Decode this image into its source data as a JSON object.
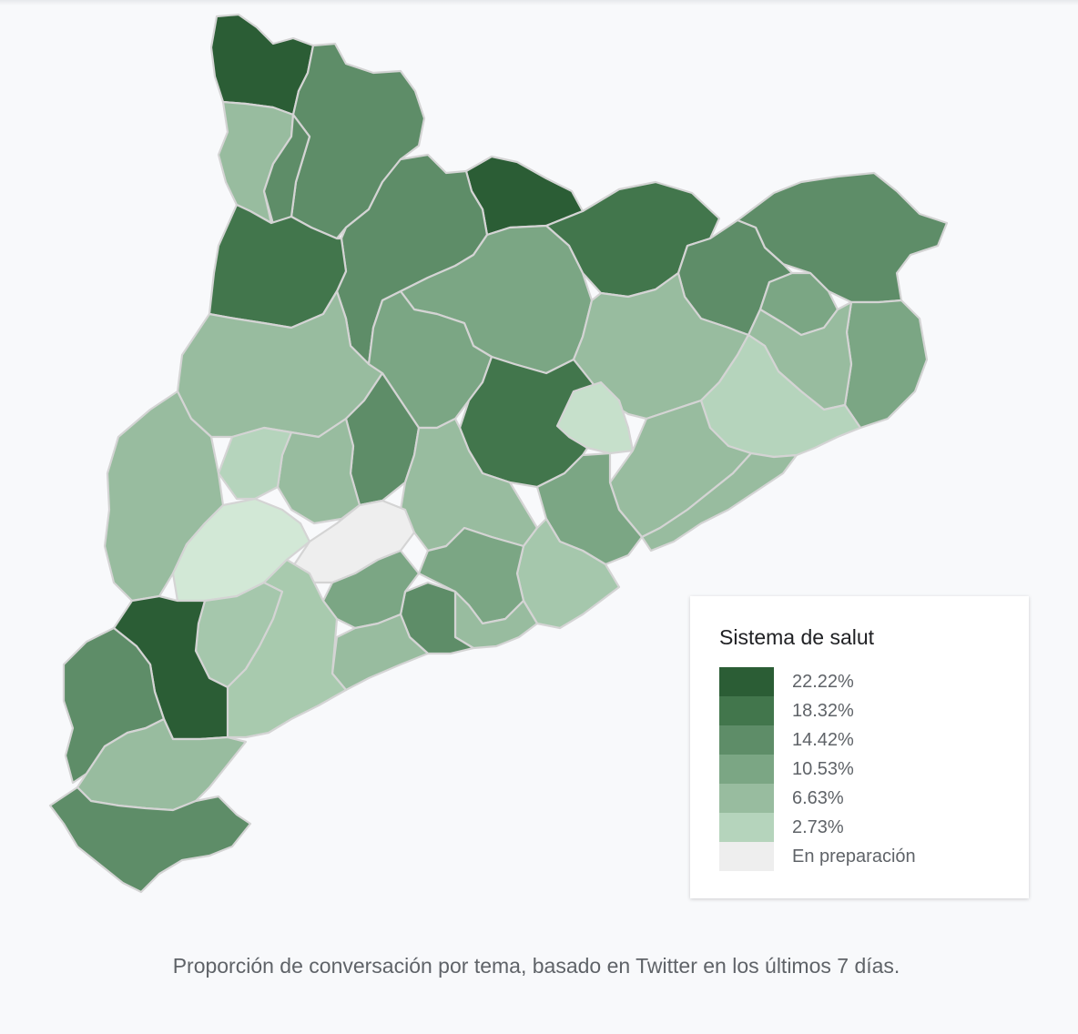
{
  "map": {
    "legend_title": "Sistema de salut",
    "legend": [
      {
        "label": "22.22%",
        "color": "#2b5d35"
      },
      {
        "label": "18.32%",
        "color": "#42764c"
      },
      {
        "label": "14.42%",
        "color": "#5e8d68"
      },
      {
        "label": "10.53%",
        "color": "#7ba684"
      },
      {
        "label": "6.63%",
        "color": "#98bc9f"
      },
      {
        "label": "2.73%",
        "color": "#b5d4bc"
      },
      {
        "label": "En preparación",
        "color": "#eeeeee"
      }
    ],
    "region_fills": [
      "#2b5d35",
      "#5e8d68",
      "#98bc9f",
      "#5e8d68",
      "#2b5d35",
      "#5e8d68",
      "#42764c",
      "#5e8d68",
      "#5e8d68",
      "#7ba684",
      "#7ba684",
      "#98bc9f",
      "#42764c",
      "#7ba684",
      "#98bc9f",
      "#b5d4bc",
      "#98bc9f",
      "#7ba684",
      "#5e8d68",
      "#42764c",
      "#c6e0cb",
      "#98bc9f",
      "#98bc9f",
      "#b5d4bc",
      "#98bc9f",
      "#98bc9f",
      "#7ba684",
      "#98bc9f",
      "#a5c7ac",
      "#d2e8d6",
      "#eeeeee",
      "#7ba684",
      "#98bc9f",
      "#5e8d68",
      "#7ba684",
      "#98bc9f",
      "#a5c7ac",
      "#a8caae"
    ]
  },
  "caption": "Proporción de conversación por tema, basado en Twitter en los últimos 7 días."
}
